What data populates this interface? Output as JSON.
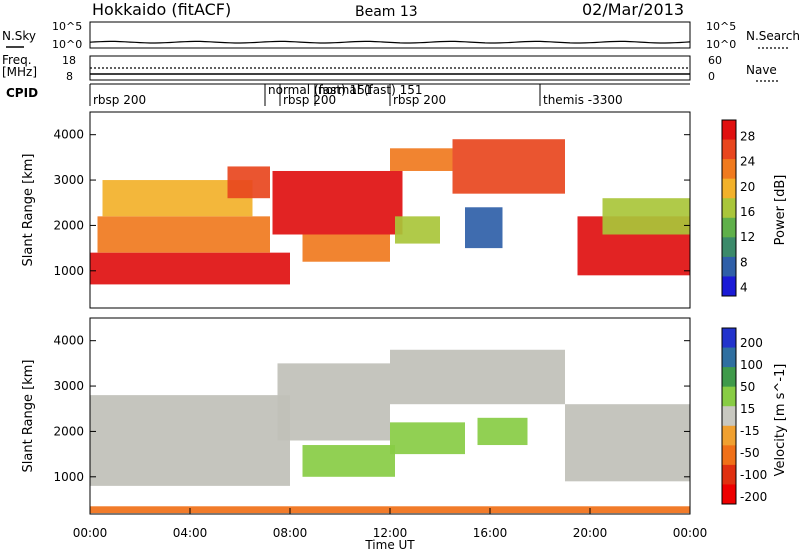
{
  "header": {
    "title": "Hokkaido (fitACF)",
    "beam": "Beam 13",
    "date": "02/Mar/2013"
  },
  "noise_panel": {
    "left_label": "N.Sky",
    "right_label": "N.Search",
    "left_ticks": [
      "10^5",
      "10^0"
    ],
    "right_ticks": [
      "10^5",
      "10^0"
    ]
  },
  "freq_panel": {
    "left_label": "Freq.",
    "left_unit": "[MHz]",
    "right_label": "Nave",
    "left_ticks": [
      "18",
      "8"
    ],
    "right_ticks": [
      "60",
      "0"
    ]
  },
  "cpid_panel": {
    "label": "CPID",
    "segments": [
      {
        "label": "rbsp 200",
        "start_hour": 0.0
      },
      {
        "label": "normal (fast) 151",
        "start_hour": 7.0
      },
      {
        "label": "rbsp 200",
        "start_hour": 7.6
      },
      {
        "label": "normal (fast) 151",
        "start_hour": 9.0
      },
      {
        "label": "rbsp 200",
        "start_hour": 12.0
      },
      {
        "label": "themis -3300",
        "start_hour": 18.0
      }
    ]
  },
  "power_panel": {
    "ylabel": "Slant Range [km]",
    "yticks": [
      "4000",
      "3000",
      "2000",
      "1000"
    ],
    "colorbar_label": "Power [dB]",
    "colorbar_ticks": [
      "28",
      "24",
      "20",
      "16",
      "12",
      "8",
      "4"
    ]
  },
  "velocity_panel": {
    "ylabel": "Slant Range [km]",
    "yticks": [
      "4000",
      "3000",
      "2000",
      "1000"
    ],
    "colorbar_label": "Velocity [m s^-1]",
    "colorbar_ticks": [
      "200",
      "100",
      "50",
      "15",
      "-15",
      "-50",
      "-100",
      "-200"
    ]
  },
  "x_axis": {
    "label": "Time UT",
    "ticks": [
      "00:00",
      "04:00",
      "08:00",
      "12:00",
      "16:00",
      "20:00",
      "00:00"
    ]
  },
  "colors": {
    "power_scale": [
      "#1b1bd6",
      "#2f5fa8",
      "#3b8a6a",
      "#5fb04a",
      "#a9c63a",
      "#f2b12a",
      "#f07a1e",
      "#e8461e",
      "#e01010"
    ],
    "velocity_scale": [
      "#2233cc",
      "#2f6fa0",
      "#3f9a4a",
      "#88cc44",
      "#c8c8c0",
      "#f0a030",
      "#f07018",
      "#e03010",
      "#ee0000"
    ],
    "ground_scatter": "#c0c0b8"
  },
  "chart_data": {
    "type": "heatmap",
    "x_range_hours": [
      0,
      24
    ],
    "y_range_km": [
      180,
      4500
    ],
    "power_db_range": [
      0,
      30
    ],
    "velocity_range": [
      -250,
      250
    ],
    "power_regions": [
      {
        "t0": 0.0,
        "t1": 8.0,
        "r0": 700,
        "r1": 1400,
        "power": 28
      },
      {
        "t0": 0.3,
        "t1": 7.2,
        "r0": 1400,
        "r1": 2200,
        "power": 22
      },
      {
        "t0": 0.5,
        "t1": 6.5,
        "r0": 2200,
        "r1": 3000,
        "power": 18
      },
      {
        "t0": 5.5,
        "t1": 7.2,
        "r0": 2600,
        "r1": 3300,
        "power": 24
      },
      {
        "t0": 7.3,
        "t1": 12.5,
        "r0": 1800,
        "r1": 3200,
        "power": 27
      },
      {
        "t0": 8.5,
        "t1": 12.0,
        "r0": 1200,
        "r1": 1800,
        "power": 20
      },
      {
        "t0": 12.0,
        "t1": 14.5,
        "r0": 3200,
        "r1": 3700,
        "power": 22
      },
      {
        "t0": 12.2,
        "t1": 14.0,
        "r0": 1600,
        "r1": 2200,
        "power": 14
      },
      {
        "t0": 14.5,
        "t1": 19.0,
        "r0": 2700,
        "r1": 3900,
        "power": 24
      },
      {
        "t0": 15.0,
        "t1": 16.5,
        "r0": 1500,
        "r1": 2400,
        "power": 6
      },
      {
        "t0": 19.5,
        "t1": 24.0,
        "r0": 900,
        "r1": 2200,
        "power": 28
      },
      {
        "t0": 20.5,
        "t1": 24.0,
        "r0": 1800,
        "r1": 2600,
        "power": 16
      }
    ],
    "velocity_regions": [
      {
        "t0": 0.0,
        "t1": 8.0,
        "r0": 800,
        "r1": 2800,
        "velocity": 0
      },
      {
        "t0": 7.5,
        "t1": 12.0,
        "r0": 1800,
        "r1": 3500,
        "velocity": 0
      },
      {
        "t0": 8.5,
        "t1": 12.2,
        "r0": 1000,
        "r1": 1700,
        "velocity": 30
      },
      {
        "t0": 12.0,
        "t1": 15.0,
        "r0": 1500,
        "r1": 2200,
        "velocity": 30
      },
      {
        "t0": 15.5,
        "t1": 17.5,
        "r0": 1700,
        "r1": 2300,
        "velocity": 30
      },
      {
        "t0": 12.0,
        "t1": 19.0,
        "r0": 2600,
        "r1": 3800,
        "velocity": 0
      },
      {
        "t0": 19.0,
        "t1": 24.0,
        "r0": 900,
        "r1": 2600,
        "velocity": 0
      },
      {
        "t0": 0.0,
        "t1": 24.0,
        "r0": 200,
        "r1": 350,
        "velocity": -60
      }
    ]
  }
}
